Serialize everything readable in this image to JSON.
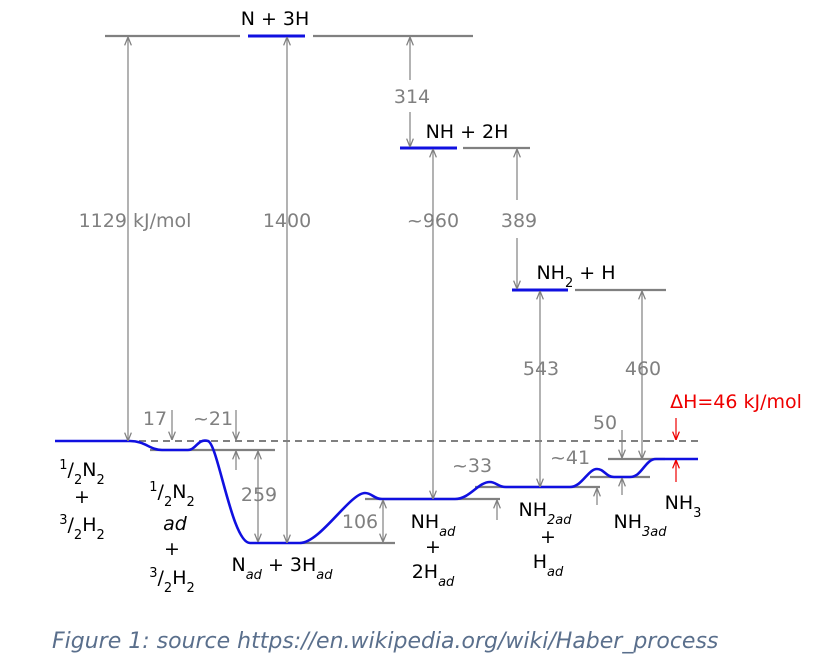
{
  "species": {
    "n_3h": [
      "N + 3H"
    ],
    "nh_2h": [
      "NH + 2H"
    ],
    "nh2_h": [
      "NH",
      "2",
      " + H"
    ],
    "gas_left": {
      "n2": [
        "1",
        "/",
        "2",
        "N",
        "2"
      ],
      "plus": "+",
      "h2": [
        "3",
        "/",
        "2",
        "H",
        "2"
      ]
    },
    "adsorbed_n2": {
      "n2": [
        "1",
        "/",
        "2",
        "N",
        "2"
      ],
      "ad": "ad",
      "plus": "+",
      "h2": [
        "3",
        "/",
        "2",
        "H",
        "2"
      ]
    },
    "n_3h_ad": [
      "N",
      "ad",
      " + 3H",
      "ad"
    ],
    "nh_ad": {
      "nh": [
        "NH",
        "ad"
      ],
      "plus": "+",
      "h": [
        "2H",
        "ad"
      ]
    },
    "nh2_ad": {
      "nh2": [
        "NH",
        "2ad"
      ],
      "plus": "+",
      "h": [
        "H",
        "ad"
      ]
    },
    "nh3_ad": [
      "NH",
      "3ad"
    ],
    "nh3": [
      "NH",
      "3"
    ]
  },
  "energies": [
    "1129 kJ/mol",
    "1400",
    "314",
    "~960",
    "389",
    "543",
    "460",
    "17",
    "~21",
    "259",
    "106",
    "~33",
    "~41",
    "50"
  ],
  "delta_h": "ΔH=46 kJ/mol",
  "caption": "Figure 1: source https://en.wikipedia.org/wiki/Haber_process"
}
